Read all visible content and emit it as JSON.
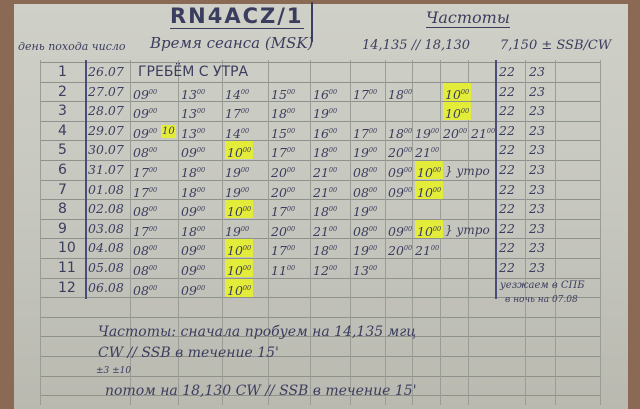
{
  "header": {
    "callsign": "RN4ACZ/1",
    "frequencies_title": "Частоты",
    "col_day": "день похода число",
    "col_time": "Время сеанса (MSK)",
    "col_freq_a": "14,135 // 18,130",
    "col_freq_b": "7,150 ± SSB/CW"
  },
  "highlight_color": "#e4ec3a",
  "rows": [
    {
      "n": "1",
      "date": "26.07",
      "note": "ГРЕБЁМ С УТРА",
      "cells": [],
      "late": [
        "22",
        "23"
      ]
    },
    {
      "n": "2",
      "date": "27.07",
      "cells": [
        {
          "t": "09"
        },
        {
          "t": "13"
        },
        {
          "t": "14"
        },
        {
          "t": "15"
        },
        {
          "t": "16"
        },
        {
          "t": "17"
        },
        {
          "t": "18"
        },
        null,
        {
          "t": "10",
          "hl": true
        }
      ],
      "late": [
        "22",
        "23"
      ]
    },
    {
      "n": "3",
      "date": "28.07",
      "cells": [
        {
          "t": "09"
        },
        {
          "t": "13"
        },
        {
          "t": "17"
        },
        {
          "t": "18"
        },
        {
          "t": "19"
        },
        null,
        null,
        null,
        {
          "t": "10",
          "hl": true
        }
      ],
      "late": [
        "22",
        "23"
      ]
    },
    {
      "n": "4",
      "date": "29.07",
      "extra": {
        "t": "10",
        "hl": true
      },
      "cells": [
        {
          "t": "09"
        },
        {
          "t": "13"
        },
        {
          "t": "14"
        },
        {
          "t": "15"
        },
        {
          "t": "16"
        },
        {
          "t": "17"
        },
        {
          "t": "18"
        },
        {
          "t": "19"
        },
        {
          "t": "20"
        },
        {
          "t": "21"
        }
      ],
      "late": [
        "22",
        "23"
      ]
    },
    {
      "n": "5",
      "date": "30.07",
      "cells": [
        {
          "t": "08"
        },
        {
          "t": "09"
        },
        {
          "t": "10",
          "hl": true
        },
        {
          "t": "17"
        },
        {
          "t": "18"
        },
        {
          "t": "19"
        },
        {
          "t": "20"
        },
        {
          "t": "21"
        }
      ],
      "late": [
        "22",
        "23"
      ]
    },
    {
      "n": "6",
      "date": "31.07",
      "cells": [
        {
          "t": "17"
        },
        {
          "t": "18"
        },
        {
          "t": "19"
        },
        {
          "t": "20"
        },
        {
          "t": "21"
        },
        {
          "t": "08"
        },
        {
          "t": "09"
        },
        {
          "t": "10",
          "hl": true
        }
      ],
      "mark": "} утро",
      "late": [
        "22",
        "23"
      ]
    },
    {
      "n": "7",
      "date": "01.08",
      "cells": [
        {
          "t": "17"
        },
        {
          "t": "18"
        },
        {
          "t": "19"
        },
        {
          "t": "20"
        },
        {
          "t": "21"
        },
        {
          "t": "08"
        },
        {
          "t": "09"
        },
        {
          "t": "10",
          "hl": true
        }
      ],
      "late": [
        "22",
        "23"
      ]
    },
    {
      "n": "8",
      "date": "02.08",
      "cells": [
        {
          "t": "08"
        },
        {
          "t": "09"
        },
        {
          "t": "10",
          "hl": true
        },
        {
          "t": "17"
        },
        {
          "t": "18"
        },
        {
          "t": "19"
        }
      ],
      "late": [
        "22",
        "23"
      ]
    },
    {
      "n": "9",
      "date": "03.08",
      "cells": [
        {
          "t": "17"
        },
        {
          "t": "18"
        },
        {
          "t": "19"
        },
        {
          "t": "20"
        },
        {
          "t": "21"
        },
        {
          "t": "08"
        },
        {
          "t": "09"
        },
        {
          "t": "10",
          "hl": true
        }
      ],
      "mark": "} утро",
      "late": [
        "22",
        "23"
      ]
    },
    {
      "n": "10",
      "date": "04.08",
      "cells": [
        {
          "t": "08"
        },
        {
          "t": "09"
        },
        {
          "t": "10",
          "hl": true
        },
        {
          "t": "17"
        },
        {
          "t": "18"
        },
        {
          "t": "19"
        },
        {
          "t": "20"
        },
        {
          "t": "21"
        }
      ],
      "late": [
        "22",
        "23"
      ]
    },
    {
      "n": "11",
      "date": "05.08",
      "cells": [
        {
          "t": "08"
        },
        {
          "t": "09"
        },
        {
          "t": "10",
          "hl": true
        },
        {
          "t": "11"
        },
        {
          "t": "12"
        },
        {
          "t": "13"
        }
      ],
      "late": [
        "22",
        "23"
      ]
    },
    {
      "n": "12",
      "date": "06.08",
      "cells": [
        {
          "t": "08"
        },
        {
          "t": "09"
        },
        {
          "t": "10",
          "hl": true
        }
      ],
      "late": []
    }
  ],
  "side_note": {
    "line1": "уезжаем в СПБ",
    "line2": "в ночь на 07.08"
  },
  "footer": {
    "line1": "Частоты: сначала пробуем на 14,135 мгц",
    "line2": "CW // SSB в течение 15'",
    "line3": "±3   ±10",
    "line4": "потом на 18,130 CW // SSB в течение 15'"
  }
}
